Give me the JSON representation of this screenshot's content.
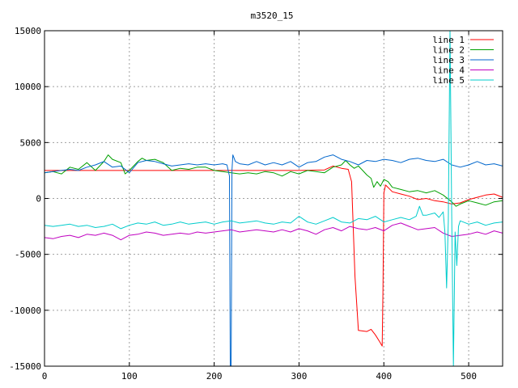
{
  "chart_data": {
    "type": "line",
    "title": "m3520_15",
    "xlabel": "",
    "ylabel": "",
    "xlim": [
      0,
      540
    ],
    "ylim": [
      -15000,
      15000
    ],
    "x_ticks": [
      0,
      100,
      200,
      300,
      400,
      500
    ],
    "y_ticks": [
      -15000,
      -10000,
      -5000,
      0,
      5000,
      10000,
      15000
    ],
    "grid": true,
    "legend": "top-right",
    "series": [
      {
        "name": "line 1",
        "color": "#ff0000",
        "points": [
          [
            0,
            2500
          ],
          [
            100,
            2500
          ],
          [
            200,
            2500
          ],
          [
            300,
            2500
          ],
          [
            330,
            2550
          ],
          [
            340,
            2900
          ],
          [
            350,
            2700
          ],
          [
            358,
            2600
          ],
          [
            362,
            1500
          ],
          [
            366,
            -7000
          ],
          [
            370,
            -11800
          ],
          [
            380,
            -11900
          ],
          [
            385,
            -11700
          ],
          [
            390,
            -12200
          ],
          [
            395,
            -12800
          ],
          [
            398,
            -13200
          ],
          [
            399,
            -8000
          ],
          [
            400,
            500
          ],
          [
            402,
            1200
          ],
          [
            410,
            600
          ],
          [
            420,
            400
          ],
          [
            430,
            200
          ],
          [
            440,
            -100
          ],
          [
            450,
            0
          ],
          [
            460,
            -200
          ],
          [
            470,
            -300
          ],
          [
            480,
            -500
          ],
          [
            490,
            -400
          ],
          [
            500,
            -100
          ],
          [
            510,
            100
          ],
          [
            520,
            300
          ],
          [
            530,
            400
          ],
          [
            540,
            100
          ]
        ]
      },
      {
        "name": "line 2",
        "color": "#00a000",
        "points": [
          [
            0,
            2300
          ],
          [
            10,
            2400
          ],
          [
            20,
            2200
          ],
          [
            30,
            2800
          ],
          [
            40,
            2600
          ],
          [
            50,
            3200
          ],
          [
            60,
            2500
          ],
          [
            70,
            3300
          ],
          [
            75,
            3900
          ],
          [
            80,
            3500
          ],
          [
            90,
            3200
          ],
          [
            95,
            2200
          ],
          [
            100,
            2500
          ],
          [
            110,
            3300
          ],
          [
            115,
            3600
          ],
          [
            120,
            3400
          ],
          [
            130,
            3500
          ],
          [
            140,
            3200
          ],
          [
            150,
            2500
          ],
          [
            160,
            2700
          ],
          [
            170,
            2600
          ],
          [
            180,
            2800
          ],
          [
            190,
            2800
          ],
          [
            200,
            2500
          ],
          [
            210,
            2400
          ],
          [
            220,
            2300
          ],
          [
            230,
            2200
          ],
          [
            240,
            2300
          ],
          [
            250,
            2200
          ],
          [
            260,
            2400
          ],
          [
            270,
            2300
          ],
          [
            280,
            2000
          ],
          [
            290,
            2400
          ],
          [
            300,
            2200
          ],
          [
            310,
            2500
          ],
          [
            320,
            2400
          ],
          [
            330,
            2300
          ],
          [
            340,
            2800
          ],
          [
            350,
            3000
          ],
          [
            355,
            3400
          ],
          [
            360,
            3000
          ],
          [
            365,
            2700
          ],
          [
            370,
            2900
          ],
          [
            375,
            2500
          ],
          [
            380,
            2100
          ],
          [
            385,
            1800
          ],
          [
            388,
            1000
          ],
          [
            392,
            1500
          ],
          [
            396,
            1100
          ],
          [
            400,
            1700
          ],
          [
            405,
            1500
          ],
          [
            410,
            1000
          ],
          [
            420,
            800
          ],
          [
            430,
            600
          ],
          [
            440,
            700
          ],
          [
            450,
            500
          ],
          [
            460,
            700
          ],
          [
            470,
            300
          ],
          [
            480,
            -300
          ],
          [
            485,
            -700
          ],
          [
            490,
            -500
          ],
          [
            500,
            -200
          ],
          [
            510,
            -400
          ],
          [
            520,
            -600
          ],
          [
            530,
            -300
          ],
          [
            540,
            -200
          ]
        ]
      },
      {
        "name": "line 3",
        "color": "#0066cc",
        "points": [
          [
            0,
            2300
          ],
          [
            10,
            2400
          ],
          [
            20,
            2500
          ],
          [
            30,
            2600
          ],
          [
            40,
            2500
          ],
          [
            50,
            2800
          ],
          [
            60,
            3000
          ],
          [
            70,
            3300
          ],
          [
            80,
            2800
          ],
          [
            90,
            2900
          ],
          [
            100,
            2300
          ],
          [
            110,
            3200
          ],
          [
            120,
            3400
          ],
          [
            130,
            3300
          ],
          [
            140,
            3100
          ],
          [
            150,
            2900
          ],
          [
            160,
            3000
          ],
          [
            170,
            3100
          ],
          [
            180,
            3000
          ],
          [
            190,
            3100
          ],
          [
            200,
            3000
          ],
          [
            210,
            3100
          ],
          [
            215,
            3000
          ],
          [
            218,
            2000
          ],
          [
            219,
            -15000
          ],
          [
            220,
            -15000
          ],
          [
            221,
            2500
          ],
          [
            222,
            3900
          ],
          [
            225,
            3300
          ],
          [
            230,
            3100
          ],
          [
            240,
            3000
          ],
          [
            250,
            3300
          ],
          [
            260,
            3000
          ],
          [
            270,
            3200
          ],
          [
            280,
            3000
          ],
          [
            290,
            3300
          ],
          [
            300,
            2800
          ],
          [
            310,
            3200
          ],
          [
            320,
            3300
          ],
          [
            330,
            3700
          ],
          [
            340,
            3900
          ],
          [
            350,
            3500
          ],
          [
            360,
            3300
          ],
          [
            370,
            3000
          ],
          [
            380,
            3400
          ],
          [
            390,
            3300
          ],
          [
            400,
            3500
          ],
          [
            410,
            3400
          ],
          [
            420,
            3200
          ],
          [
            430,
            3500
          ],
          [
            440,
            3600
          ],
          [
            450,
            3400
          ],
          [
            460,
            3300
          ],
          [
            470,
            3500
          ],
          [
            480,
            3000
          ],
          [
            490,
            2800
          ],
          [
            500,
            3000
          ],
          [
            510,
            3300
          ],
          [
            520,
            3000
          ],
          [
            530,
            3100
          ],
          [
            540,
            2900
          ]
        ]
      },
      {
        "name": "line 4",
        "color": "#c000c0",
        "points": [
          [
            0,
            -3500
          ],
          [
            10,
            -3600
          ],
          [
            20,
            -3400
          ],
          [
            30,
            -3300
          ],
          [
            40,
            -3500
          ],
          [
            50,
            -3200
          ],
          [
            60,
            -3300
          ],
          [
            70,
            -3100
          ],
          [
            80,
            -3300
          ],
          [
            90,
            -3700
          ],
          [
            100,
            -3300
          ],
          [
            110,
            -3200
          ],
          [
            120,
            -3000
          ],
          [
            130,
            -3100
          ],
          [
            140,
            -3300
          ],
          [
            150,
            -3200
          ],
          [
            160,
            -3100
          ],
          [
            170,
            -3200
          ],
          [
            180,
            -3000
          ],
          [
            190,
            -3100
          ],
          [
            200,
            -3000
          ],
          [
            210,
            -2900
          ],
          [
            220,
            -2800
          ],
          [
            230,
            -3000
          ],
          [
            240,
            -2900
          ],
          [
            250,
            -2800
          ],
          [
            260,
            -2900
          ],
          [
            270,
            -3000
          ],
          [
            280,
            -2800
          ],
          [
            290,
            -3000
          ],
          [
            300,
            -2700
          ],
          [
            310,
            -2900
          ],
          [
            320,
            -3200
          ],
          [
            330,
            -2800
          ],
          [
            340,
            -2600
          ],
          [
            350,
            -2900
          ],
          [
            360,
            -2500
          ],
          [
            370,
            -2700
          ],
          [
            380,
            -2800
          ],
          [
            390,
            -2600
          ],
          [
            400,
            -2900
          ],
          [
            410,
            -2400
          ],
          [
            420,
            -2200
          ],
          [
            430,
            -2500
          ],
          [
            440,
            -2800
          ],
          [
            450,
            -2700
          ],
          [
            460,
            -2600
          ],
          [
            470,
            -3100
          ],
          [
            480,
            -3400
          ],
          [
            490,
            -3300
          ],
          [
            500,
            -3200
          ],
          [
            510,
            -3000
          ],
          [
            520,
            -3200
          ],
          [
            530,
            -2900
          ],
          [
            540,
            -3100
          ]
        ]
      },
      {
        "name": "line 5",
        "color": "#00cccc",
        "points": [
          [
            0,
            -2400
          ],
          [
            10,
            -2500
          ],
          [
            20,
            -2400
          ],
          [
            30,
            -2300
          ],
          [
            40,
            -2500
          ],
          [
            50,
            -2400
          ],
          [
            60,
            -2600
          ],
          [
            70,
            -2500
          ],
          [
            80,
            -2300
          ],
          [
            90,
            -2700
          ],
          [
            100,
            -2400
          ],
          [
            110,
            -2200
          ],
          [
            120,
            -2300
          ],
          [
            130,
            -2100
          ],
          [
            140,
            -2400
          ],
          [
            150,
            -2300
          ],
          [
            160,
            -2100
          ],
          [
            170,
            -2300
          ],
          [
            180,
            -2200
          ],
          [
            190,
            -2100
          ],
          [
            200,
            -2300
          ],
          [
            210,
            -2100
          ],
          [
            220,
            -2000
          ],
          [
            230,
            -2200
          ],
          [
            240,
            -2100
          ],
          [
            250,
            -2000
          ],
          [
            260,
            -2200
          ],
          [
            270,
            -2300
          ],
          [
            280,
            -2100
          ],
          [
            290,
            -2200
          ],
          [
            300,
            -1600
          ],
          [
            310,
            -2100
          ],
          [
            320,
            -2300
          ],
          [
            330,
            -2000
          ],
          [
            340,
            -1700
          ],
          [
            350,
            -2100
          ],
          [
            360,
            -2200
          ],
          [
            370,
            -1800
          ],
          [
            380,
            -1900
          ],
          [
            390,
            -1600
          ],
          [
            400,
            -2100
          ],
          [
            410,
            -1900
          ],
          [
            420,
            -1700
          ],
          [
            430,
            -1900
          ],
          [
            438,
            -1600
          ],
          [
            442,
            -700
          ],
          [
            446,
            -1500
          ],
          [
            450,
            -1500
          ],
          [
            460,
            -1300
          ],
          [
            465,
            -1700
          ],
          [
            470,
            -1200
          ],
          [
            472,
            -3000
          ],
          [
            474,
            -8000
          ],
          [
            476,
            -2000
          ],
          [
            478,
            15000
          ],
          [
            480,
            -1500
          ],
          [
            482,
            -15000
          ],
          [
            484,
            -3000
          ],
          [
            486,
            -6000
          ],
          [
            488,
            -2500
          ],
          [
            490,
            -2000
          ],
          [
            500,
            -2300
          ],
          [
            510,
            -2100
          ],
          [
            520,
            -2400
          ],
          [
            530,
            -2200
          ],
          [
            540,
            -2100
          ]
        ]
      }
    ]
  }
}
